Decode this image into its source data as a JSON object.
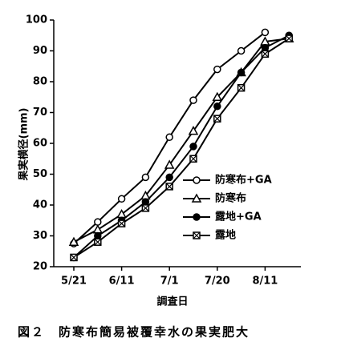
{
  "chart_data": {
    "type": "line",
    "caption": "図２　防寒布簡易被覆幸水の果実肥大",
    "x_label": "調査日",
    "y_label": "果実横径(mm)",
    "categories": [
      "5/21",
      null,
      "6/11",
      null,
      "7/1",
      null,
      "7/20",
      null,
      "8/11",
      null
    ],
    "series": [
      {
        "name": "防寒布+GA",
        "color": "#000000",
        "marker": "circle-open",
        "values": [
          27.5,
          34.5,
          42,
          49,
          62,
          74,
          84,
          90,
          96,
          null
        ]
      },
      {
        "name": "防寒布",
        "color": "#000000",
        "marker": "triangle-open",
        "values": [
          28,
          32,
          37,
          43,
          53,
          64,
          75,
          83,
          93,
          94
        ]
      },
      {
        "name": "露地+GA",
        "color": "#000000",
        "marker": "circle-filled",
        "values": [
          23,
          30,
          35,
          41,
          49,
          59,
          72,
          83,
          91,
          95
        ]
      },
      {
        "name": "露地",
        "color": "#000000",
        "marker": "square-cross",
        "values": [
          23,
          28,
          34,
          39,
          46,
          55,
          68,
          78,
          89,
          94
        ]
      }
    ],
    "ylim": [
      20,
      100
    ],
    "yticks": [
      20,
      30,
      40,
      50,
      60,
      70,
      80,
      90,
      100
    ],
    "grid": false,
    "legend": "center-right"
  }
}
